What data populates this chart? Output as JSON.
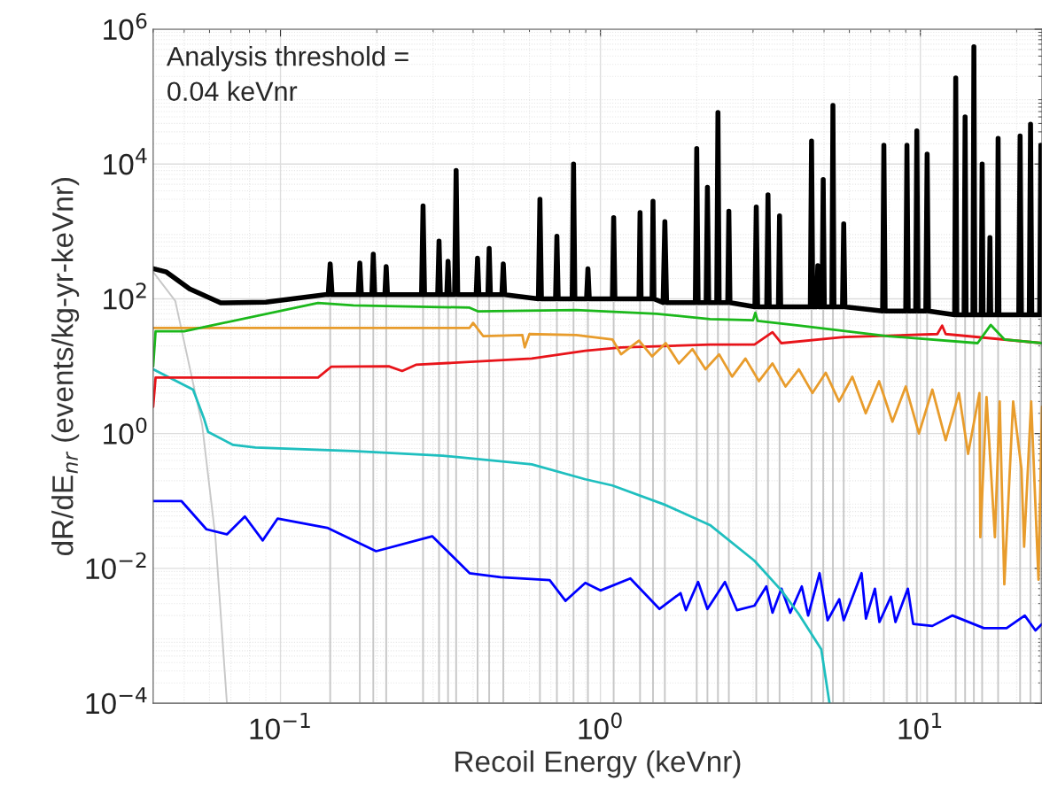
{
  "chart_data": {
    "type": "line",
    "xlabel": "Recoil Energy (keVnr)",
    "ylabel": "dR/dE$_{nr}$ (events/kg-yr-keVnr)",
    "annotations": [
      "Analysis threshold =\n0.04 keVnr"
    ],
    "log": "xy",
    "grid": true,
    "line_style": "solid",
    "xlim": [
      0.04,
      24
    ],
    "ylim": [
      0.0001,
      1000000
    ],
    "xticks": [
      {
        "value": 0.1,
        "label": "10$^{−1}$"
      },
      {
        "value": 1,
        "label": "10$^{0}$"
      },
      {
        "value": 10,
        "label": "10$^{1}$"
      }
    ],
    "yticks": [
      {
        "value": 0.0001,
        "label": "10$^{−4}$"
      },
      {
        "value": 0.01,
        "label": "10$^{−2}$"
      },
      {
        "value": 1,
        "label": "10$^{0}$"
      },
      {
        "value": 100,
        "label": "10$^{2}$"
      },
      {
        "value": 10000,
        "label": "10$^{4}$"
      },
      {
        "value": 1000000,
        "label": "10$^{6}$"
      }
    ],
    "series": [
      {
        "color": "#c8c8c8",
        "x": [
          0.04,
          0.0469,
          0.0569,
          0.0626,
          0.068,
          0.143,
          0.143,
          0.143,
          0.177,
          0.177,
          0.177,
          0.195,
          0.195,
          0.195,
          0.214,
          0.214,
          0.214,
          0.279,
          0.279,
          0.279,
          0.313,
          0.313,
          0.313,
          0.334,
          0.334,
          0.334,
          0.354,
          0.354,
          0.354,
          0.413,
          0.413,
          0.413,
          0.449,
          0.449,
          0.449,
          0.497,
          0.497,
          0.497,
          0.647,
          0.647,
          0.647,
          0.731,
          0.731,
          0.731,
          0.824,
          0.824,
          0.824,
          0.914,
          0.914,
          0.914,
          1.1,
          1.1,
          1.1,
          1.33,
          1.33,
          1.33,
          1.46,
          1.46,
          1.46,
          1.59,
          1.59,
          1.59,
          2.0,
          2.0,
          2.0,
          2.16,
          2.16,
          2.16,
          2.33,
          2.33,
          2.33,
          2.52,
          2.52,
          2.52,
          3.07,
          3.07,
          3.07,
          3.34,
          3.34,
          3.34,
          3.63,
          3.63,
          3.63,
          4.57,
          4.57,
          4.57,
          4.97,
          4.97,
          4.97,
          5.33,
          5.33,
          5.33,
          5.76,
          5.76,
          5.76,
          7.69,
          7.69,
          7.69,
          9.08,
          9.08,
          9.08,
          9.75,
          9.75,
          9.75,
          10.5,
          10.5,
          10.5,
          12.9,
          12.9,
          12.9,
          13.8,
          13.8,
          13.8,
          14.7,
          14.7,
          14.7,
          15.6,
          15.6,
          15.6,
          17.5,
          17.5,
          17.5,
          20.5,
          20.5,
          20.5,
          22.1,
          22.1,
          22.1,
          23.8,
          23.8,
          23.8
        ],
        "values": [
          250,
          93,
          1.35,
          0.029,
          0.0001,
          0.0001,
          110,
          0.0001,
          0.0001,
          110,
          0.0001,
          0.0001,
          110,
          0.0001,
          0.0001,
          110,
          0.0001,
          0.0001,
          110,
          0.0001,
          0.0001,
          110,
          0.0001,
          0.0001,
          110,
          0.0001,
          0.0001,
          110,
          0.0001,
          0.0001,
          110,
          0.0001,
          0.0001,
          110,
          0.0001,
          0.0001,
          110,
          0.0001,
          0.0001,
          95,
          0.0001,
          0.0001,
          95,
          0.0001,
          0.0001,
          95,
          0.0001,
          0.0001,
          95,
          0.0001,
          0.0001,
          95,
          0.0001,
          0.0001,
          95,
          0.0001,
          0.0001,
          95,
          0.0001,
          0.0001,
          85,
          0.0001,
          0.0001,
          85,
          0.0001,
          0.0001,
          85,
          0.0001,
          0.0001,
          85,
          0.0001,
          0.0001,
          85,
          0.0001,
          0.0001,
          72,
          0.0001,
          0.0001,
          72,
          0.0001,
          0.0001,
          72,
          0.0001,
          0.0001,
          72,
          0.0001,
          0.0001,
          72,
          0.0001,
          0.0001,
          72,
          0.0001,
          0.0001,
          72,
          0.0001,
          0.0001,
          63,
          0.0001,
          0.0001,
          63,
          0.0001,
          0.0001,
          63,
          0.0001,
          0.0001,
          63,
          0.0001,
          0.0001,
          55,
          0.0001,
          0.0001,
          55,
          0.0001,
          0.0001,
          55,
          0.0001,
          0.0001,
          55,
          0.0001,
          0.0001,
          55,
          0.0001,
          0.0001,
          55,
          0.0001,
          0.0001,
          55,
          0.0001,
          0.0001,
          55,
          0.0001
        ]
      },
      {
        "color": "#0000ff",
        "x": [
          0.04,
          0.049,
          0.0587,
          0.068,
          0.0774,
          0.088,
          0.098,
          0.14,
          0.199,
          0.298,
          0.39,
          0.488,
          0.694,
          0.778,
          0.897,
          1.0,
          1.24,
          1.53,
          1.78,
          1.85,
          2.02,
          2.16,
          2.45,
          2.67,
          3.03,
          3.3,
          3.45,
          3.68,
          3.92,
          4.26,
          4.46,
          4.84,
          5.13,
          5.58,
          5.76,
          6.55,
          6.76,
          7.21,
          7.45,
          8.09,
          8.36,
          9.14,
          9.5,
          10.9,
          12.6,
          15.8,
          18.6,
          21.2,
          22.9,
          24
        ],
        "values": [
          0.1,
          0.1,
          0.038,
          0.032,
          0.059,
          0.026,
          0.055,
          0.04,
          0.018,
          0.03,
          0.0085,
          0.0074,
          0.0067,
          0.0033,
          0.0061,
          0.0047,
          0.0071,
          0.0025,
          0.0043,
          0.0024,
          0.0063,
          0.0025,
          0.0063,
          0.0024,
          0.0028,
          0.0054,
          0.0022,
          0.005,
          0.0022,
          0.0054,
          0.002,
          0.0085,
          0.0017,
          0.0035,
          0.0017,
          0.0085,
          0.0018,
          0.005,
          0.0016,
          0.0038,
          0.0016,
          0.005,
          0.0015,
          0.0014,
          0.002,
          0.0013,
          0.0013,
          0.002,
          0.0012,
          0.0015
        ]
      },
      {
        "color": "#1fbfbf",
        "x": [
          0.04,
          0.0533,
          0.0576,
          0.0594,
          0.0711,
          0.0835,
          0.169,
          0.321,
          0.61,
          0.897,
          1.09,
          1.6,
          2.2,
          3.03,
          3.68,
          4.17,
          4.9,
          5.2
        ],
        "values": [
          9,
          4.5,
          1.7,
          1.06,
          0.68,
          0.62,
          0.55,
          0.47,
          0.35,
          0.21,
          0.17,
          0.087,
          0.044,
          0.013,
          0.0047,
          0.0021,
          0.00063,
          0.0001
        ]
      },
      {
        "color": "#e8141a",
        "x": [
          0.04,
          0.0407,
          0.131,
          0.144,
          0.218,
          0.24,
          0.265,
          0.61,
          0.897,
          1.16,
          2.2,
          3.03,
          3.45,
          3.68,
          5.76,
          11.3,
          11.7,
          12.0,
          24
        ],
        "values": [
          2.5,
          6.8,
          6.8,
          9.8,
          10,
          8.5,
          10.5,
          13,
          17,
          19,
          21,
          21,
          32,
          22,
          27,
          30,
          40,
          30,
          22
        ]
      },
      {
        "color": "#e89c2c",
        "x": [
          0.04,
          0.39,
          0.4,
          0.43,
          0.57,
          0.58,
          0.6,
          0.84,
          1.09,
          1.16,
          1.32,
          1.45,
          1.6,
          1.76,
          1.94,
          2.13,
          2.35,
          2.58,
          2.84,
          3.13,
          3.45,
          3.79,
          4.17,
          4.6,
          5.06,
          5.57,
          6.13,
          6.75,
          7.43,
          8.18,
          9.0,
          9.9,
          10.9,
          12.0,
          13.2,
          14.1,
          15.3,
          15.4,
          16.1,
          17.1,
          17.7,
          18.3,
          19.5,
          20.7,
          21.1,
          22.2,
          23.4,
          24
        ],
        "values": [
          37,
          37,
          44,
          28,
          29,
          19,
          30,
          29,
          25,
          15,
          24,
          14,
          22,
          11,
          18,
          9,
          15,
          7,
          13,
          6,
          11,
          5,
          9,
          4,
          8,
          3,
          7,
          2,
          6,
          1.5,
          5,
          1,
          4.5,
          0.8,
          4,
          0.5,
          4,
          0.029,
          3.5,
          0.029,
          3,
          0.0058,
          3,
          0.3,
          0.021,
          3,
          0.0068,
          2.5
        ]
      },
      {
        "color": "#1bb81b",
        "x": [
          0.04,
          0.0407,
          0.05,
          0.131,
          0.169,
          0.39,
          0.415,
          0.84,
          1.5,
          2.2,
          3.0,
          3.05,
          3.1,
          4.17,
          7.9,
          15.1,
          16.6,
          18.3,
          24
        ],
        "values": [
          10,
          33,
          33,
          87,
          80,
          74,
          65,
          68,
          60,
          50,
          48,
          62,
          47,
          40,
          28,
          22,
          41,
          25,
          22
        ]
      },
      {
        "color": "#000000",
        "x": [
          0.04,
          0.044,
          0.052,
          0.065,
          0.09,
          0.138,
          0.141,
          0.143,
          0.145,
          0.175,
          0.177,
          0.179,
          0.193,
          0.195,
          0.197,
          0.212,
          0.214,
          0.216,
          0.276,
          0.279,
          0.282,
          0.31,
          0.313,
          0.316,
          0.331,
          0.334,
          0.337,
          0.35,
          0.354,
          0.358,
          0.409,
          0.413,
          0.417,
          0.445,
          0.449,
          0.453,
          0.492,
          0.497,
          0.502,
          0.64,
          0.647,
          0.654,
          0.724,
          0.731,
          0.738,
          0.816,
          0.824,
          0.832,
          0.905,
          0.914,
          0.923,
          1.09,
          1.1,
          1.11,
          1.32,
          1.33,
          1.34,
          1.45,
          1.46,
          1.47,
          1.57,
          1.59,
          1.61,
          1.98,
          2.0,
          2.02,
          2.14,
          2.16,
          2.18,
          2.31,
          2.33,
          2.35,
          2.5,
          2.52,
          2.54,
          3.04,
          3.07,
          3.1,
          3.31,
          3.34,
          3.37,
          3.6,
          3.63,
          3.66,
          4.53,
          4.57,
          4.61,
          4.74,
          4.78,
          4.82,
          4.93,
          4.97,
          5.01,
          5.29,
          5.33,
          5.37,
          5.71,
          5.76,
          5.81,
          7.62,
          7.69,
          7.76,
          9.0,
          9.08,
          9.16,
          9.67,
          9.75,
          9.83,
          10.4,
          10.5,
          10.6,
          12.8,
          12.9,
          13.0,
          13.7,
          13.8,
          13.9,
          14.6,
          14.7,
          14.8,
          15.5,
          15.6,
          15.7,
          16.4,
          16.5,
          16.6,
          17.4,
          17.5,
          17.6,
          20.3,
          20.5,
          20.7,
          21.9,
          22.1,
          22.3,
          23.6,
          23.8,
          24.0
        ],
        "values": [
          280,
          250,
          140,
          87,
          89,
          115,
          115,
          330,
          115,
          115,
          340,
          115,
          115,
          460,
          115,
          115,
          300,
          115,
          115,
          2400,
          115,
          115,
          720,
          115,
          115,
          360,
          115,
          115,
          8000,
          115,
          115,
          400,
          115,
          115,
          560,
          115,
          115,
          330,
          115,
          100,
          3000,
          100,
          100,
          850,
          100,
          100,
          10000,
          100,
          100,
          280,
          100,
          100,
          1600,
          100,
          100,
          1900,
          100,
          100,
          2800,
          100,
          88,
          1400,
          88,
          88,
          17000,
          88,
          88,
          4500,
          88,
          88,
          58000,
          88,
          88,
          2000,
          88,
          76,
          2300,
          76,
          76,
          3500,
          76,
          76,
          1700,
          76,
          76,
          22000,
          76,
          76,
          310,
          76,
          76,
          5900,
          76,
          76,
          74000,
          76,
          76,
          1300,
          76,
          66,
          19000,
          66,
          66,
          19000,
          66,
          66,
          31000,
          66,
          66,
          14000,
          66,
          58,
          190000,
          58,
          58,
          50000,
          58,
          58,
          550000,
          58,
          58,
          10000,
          58,
          58,
          810,
          58,
          58,
          24000,
          58,
          58,
          26000,
          58,
          58,
          39000,
          58,
          58,
          19000,
          58
        ]
      }
    ]
  }
}
